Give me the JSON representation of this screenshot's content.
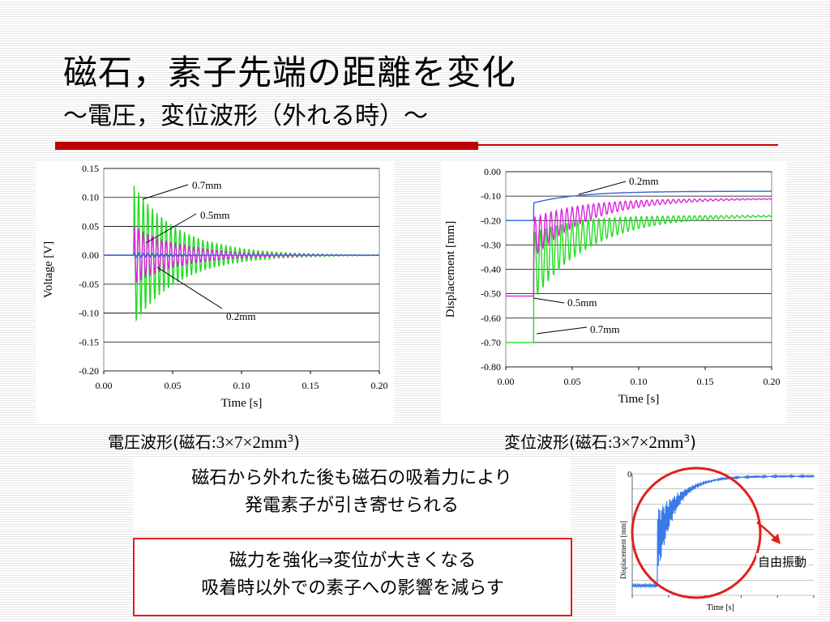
{
  "title_line1": "磁石，素子先端の距離を変化",
  "title_line2": "～電圧，変位波形（外れる時）～",
  "captions": {
    "left": {
      "prefix": "電圧波形(磁石",
      "num": ":3×7×2mm",
      "sup": "3",
      "suffix": ")"
    },
    "right": {
      "prefix": "変位波形(磁石",
      "num": ":3×7×2mm",
      "sup": "3",
      "suffix": ")"
    }
  },
  "box1": {
    "line1": "磁石から外れた後も磁石の吸着力により",
    "line2": "発電素子が引き寄せられる"
  },
  "box2": {
    "line1": "磁力を強化⇒変位が大きくなる",
    "line2": "吸着時以外での素子への影響を減らす"
  },
  "inset": {
    "label": "自由振動",
    "ylabel": "Displacement [mm]",
    "xlabel": "Time [s]",
    "y_tick": "0"
  },
  "colors": {
    "accent_red": "#c00000",
    "series_green": "#22dd22",
    "series_magenta": "#dd22dd",
    "series_blue": "#3366dd"
  },
  "chart_data": [
    {
      "type": "line",
      "xlabel": "Time [s]",
      "ylabel": "Voltage [V]",
      "xlim": [
        0,
        0.2
      ],
      "ylim": [
        -0.2,
        0.15
      ],
      "x_ticks": [
        "0.00",
        "0.05",
        "0.10",
        "0.15",
        "0.20"
      ],
      "y_ticks": [
        "0.15",
        "0.10",
        "0.05",
        "0.00",
        "-0.05",
        "-0.10",
        "-0.15",
        "-0.20"
      ],
      "annotations": [
        "0.7mm",
        "0.5mm",
        "0.2mm"
      ],
      "series": [
        {
          "name": "0.7mm",
          "color": "#22dd22",
          "kind": "voltage",
          "t0": 0.022,
          "baseline": 0.0,
          "amp": 0.12,
          "decay": 30,
          "freq": 300
        },
        {
          "name": "0.5mm",
          "color": "#dd22dd",
          "kind": "voltage",
          "t0": 0.022,
          "baseline": 0.0,
          "amp": 0.05,
          "decay": 30,
          "freq": 300
        },
        {
          "name": "0.2mm",
          "color": "#3366dd",
          "kind": "voltage",
          "t0": 0.022,
          "baseline": 0.0,
          "amp": 0.004,
          "decay": 30,
          "freq": 300
        }
      ]
    },
    {
      "type": "line",
      "xlabel": "Time [s]",
      "ylabel": "Displacement [mm]",
      "xlim": [
        0,
        0.2
      ],
      "ylim": [
        -0.8,
        0.0
      ],
      "x_ticks": [
        "0.00",
        "0.05",
        "0.10",
        "0.15",
        "0.20"
      ],
      "y_ticks": [
        "0.00",
        "-0.10",
        "-0.20",
        "-0.30",
        "-0.40",
        "-0.50",
        "-0.60",
        "-0.70",
        "-0.80"
      ],
      "annotations": [
        "0.2mm",
        "0.5mm",
        "0.7mm"
      ],
      "series": [
        {
          "name": "0.7mm",
          "color": "#22dd22",
          "kind": "disp",
          "t0": 0.021,
          "start": -0.7,
          "end": -0.18,
          "rise": 25,
          "amp": 0.14,
          "decay": 22,
          "freq": 250
        },
        {
          "name": "0.5mm",
          "color": "#dd22dd",
          "kind": "disp",
          "t0": 0.021,
          "start": -0.51,
          "end": -0.11,
          "rise": 25,
          "amp": 0.08,
          "decay": 22,
          "freq": 250
        },
        {
          "name": "0.2mm",
          "color": "#3366dd",
          "kind": "disp",
          "t0": 0.021,
          "start": -0.2,
          "end": -0.08,
          "rise": 30,
          "amp": 0.0,
          "decay": 22,
          "freq": 250
        }
      ]
    }
  ]
}
